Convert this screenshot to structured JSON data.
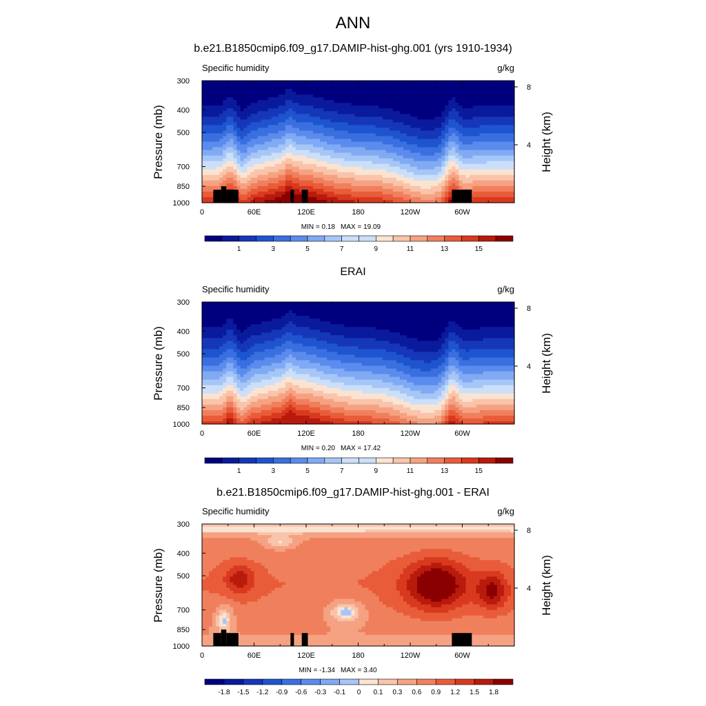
{
  "title": "ANN",
  "chart_data": [
    {
      "type": "heatmap",
      "title": "b.e21.B1850cmip6.f09_g17.DAMIP-hist-ghg.001 (yrs 1910-1934)",
      "left_label": "Specific humidity",
      "right_label": "g/kg",
      "xlabel": "",
      "ylabel": "Pressure (mb)",
      "ylabel_right": "Height (km)",
      "x_ticks": [
        "0",
        "60E",
        "120E",
        "180",
        "120W",
        "60W"
      ],
      "x_tick_values": [
        0,
        60,
        120,
        180,
        240,
        300
      ],
      "xlim": [
        0,
        360
      ],
      "y_ticks": [
        "300",
        "400",
        "500",
        "700",
        "850",
        "1000"
      ],
      "y_tick_values": [
        300,
        400,
        500,
        700,
        850,
        1000
      ],
      "ylim": [
        300,
        1000
      ],
      "y_scale": "log-pressure",
      "right_ticks": [
        "8",
        "4"
      ],
      "right_tick_values": [
        8,
        4
      ],
      "min_text": "MIN =   0.18",
      "max_text": "MAX =  19.09",
      "min": 0.18,
      "max": 19.09,
      "colorbar_levels": [
        0,
        1,
        2,
        3,
        4,
        5,
        6,
        7,
        8,
        9,
        10,
        11,
        12,
        13,
        14,
        15,
        16
      ],
      "colorbar_labels": [
        "1",
        "3",
        "5",
        "7",
        "9",
        "11",
        "13",
        "15"
      ],
      "colorbar_label_values": [
        1,
        3,
        5,
        7,
        9,
        11,
        13,
        15
      ]
    },
    {
      "type": "heatmap",
      "title": "ERAI",
      "left_label": "Specific humidity",
      "right_label": "g/kg",
      "xlabel": "",
      "ylabel": "Pressure (mb)",
      "ylabel_right": "Height (km)",
      "x_ticks": [
        "0",
        "60E",
        "120E",
        "180",
        "120W",
        "60W"
      ],
      "x_tick_values": [
        0,
        60,
        120,
        180,
        240,
        300
      ],
      "xlim": [
        0,
        360
      ],
      "y_ticks": [
        "300",
        "400",
        "500",
        "700",
        "850",
        "1000"
      ],
      "y_tick_values": [
        300,
        400,
        500,
        700,
        850,
        1000
      ],
      "ylim": [
        300,
        1000
      ],
      "y_scale": "log-pressure",
      "right_ticks": [
        "8",
        "4"
      ],
      "right_tick_values": [
        8,
        4
      ],
      "min_text": "MIN =   0.20",
      "max_text": "MAX =  17.42",
      "min": 0.2,
      "max": 17.42,
      "colorbar_levels": [
        0,
        1,
        2,
        3,
        4,
        5,
        6,
        7,
        8,
        9,
        10,
        11,
        12,
        13,
        14,
        15,
        16
      ],
      "colorbar_labels": [
        "1",
        "3",
        "5",
        "7",
        "9",
        "11",
        "13",
        "15"
      ],
      "colorbar_label_values": [
        1,
        3,
        5,
        7,
        9,
        11,
        13,
        15
      ]
    },
    {
      "type": "heatmap",
      "title": "b.e21.B1850cmip6.f09_g17.DAMIP-hist-ghg.001 - ERAI",
      "left_label": "Specific humidity",
      "right_label": "g/kg",
      "xlabel": "",
      "ylabel": "Pressure (mb)",
      "ylabel_right": "Height (km)",
      "x_ticks": [
        "0",
        "60E",
        "120E",
        "180",
        "120W",
        "60W"
      ],
      "x_tick_values": [
        0,
        60,
        120,
        180,
        240,
        300
      ],
      "xlim": [
        0,
        360
      ],
      "y_ticks": [
        "300",
        "400",
        "500",
        "700",
        "850",
        "1000"
      ],
      "y_tick_values": [
        300,
        400,
        500,
        700,
        850,
        1000
      ],
      "ylim": [
        300,
        1000
      ],
      "y_scale": "log-pressure",
      "right_ticks": [
        "8",
        "4"
      ],
      "right_tick_values": [
        8,
        4
      ],
      "min_text": "MIN =  -1.34",
      "max_text": "MAX =   3.40",
      "min": -1.34,
      "max": 3.4,
      "colorbar_levels": [
        -1.8,
        -1.5,
        -1.2,
        -0.9,
        -0.6,
        -0.3,
        -0.1,
        0,
        0.1,
        0.3,
        0.6,
        0.9,
        1.2,
        1.5,
        1.8
      ],
      "colorbar_labels": [
        "-1.8",
        "-1.5",
        "-1.2",
        "-0.9",
        "-0.6",
        "-0.3",
        "-0.1",
        "0",
        "0.1",
        "0.3",
        "0.6",
        "0.9",
        "1.2",
        "1.5",
        "1.8"
      ],
      "colorbar_label_values": [
        -1.8,
        -1.5,
        -1.2,
        -0.9,
        -0.6,
        -0.3,
        -0.1,
        0,
        0.1,
        0.3,
        0.6,
        0.9,
        1.2,
        1.5,
        1.8
      ]
    }
  ],
  "colors": {
    "colormap": [
      "#00007f",
      "#0a1a9c",
      "#1537b8",
      "#1f54cf",
      "#3a6fe0",
      "#5b8ced",
      "#80aaf3",
      "#a6c6f7",
      "#cbdff9",
      "#fbe3d2",
      "#f9c4aa",
      "#f5a283",
      "#f0805d",
      "#e95c3a",
      "#d8391f",
      "#b81a0c",
      "#8a0000"
    ],
    "topography": "#000000"
  }
}
